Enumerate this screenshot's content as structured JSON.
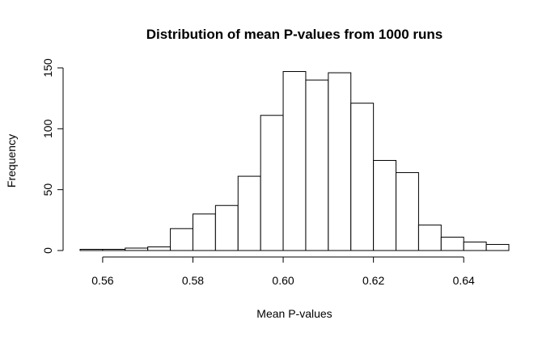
{
  "chart_data": {
    "type": "bar",
    "title": "Distribution of mean P-values from 1000 runs",
    "xlabel": "Mean P-values",
    "ylabel": "Frequency",
    "bin_edges": [
      0.555,
      0.56,
      0.565,
      0.57,
      0.575,
      0.58,
      0.585,
      0.59,
      0.595,
      0.6,
      0.605,
      0.61,
      0.615,
      0.62,
      0.625,
      0.63,
      0.635,
      0.64,
      0.645,
      0.65
    ],
    "values": [
      1,
      1,
      2,
      3,
      18,
      30,
      37,
      61,
      111,
      147,
      140,
      146,
      121,
      74,
      64,
      21,
      11,
      7,
      5
    ],
    "xlim": [
      0.555,
      0.65
    ],
    "ylim": [
      0,
      150
    ],
    "x_ticks": [
      0.56,
      0.58,
      0.6,
      0.62,
      0.64
    ],
    "x_tick_labels": [
      "0.56",
      "0.58",
      "0.60",
      "0.62",
      "0.64"
    ],
    "y_ticks": [
      0,
      50,
      100,
      150
    ],
    "y_tick_labels": [
      "0",
      "50",
      "100",
      "150"
    ],
    "grid": false,
    "legend": "none"
  }
}
